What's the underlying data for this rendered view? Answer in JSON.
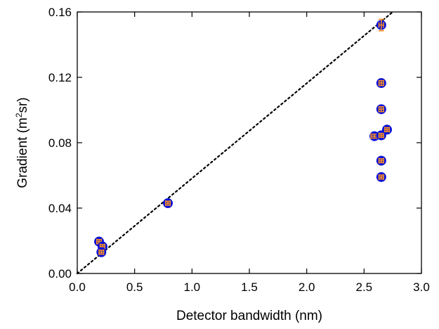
{
  "chart_data": {
    "type": "scatter",
    "xlabel": "Detector bandwidth (nm)",
    "ylabel_parts": {
      "pre": "Gradient (m",
      "sup": "2",
      "post": "sr)"
    },
    "xlim": [
      0.0,
      3.0
    ],
    "ylim": [
      0.0,
      0.16
    ],
    "x_ticks": [
      0.0,
      0.5,
      1.0,
      1.5,
      2.0,
      2.5,
      3.0
    ],
    "x_tick_labels": [
      "0.0",
      "0.5",
      "1.0",
      "1.5",
      "2.0",
      "2.5",
      "3.0"
    ],
    "y_ticks": [
      0.0,
      0.04,
      0.08,
      0.12,
      0.16
    ],
    "y_tick_labels": [
      "0.00",
      "0.04",
      "0.08",
      "0.12",
      "0.16"
    ],
    "grid": false,
    "marker_color": "#0a10d8",
    "errorbar_color": "#f08c28",
    "fit_line_color": "#000000",
    "points": [
      {
        "x": 0.19,
        "y": 0.0195,
        "xerr": 0.02,
        "yerr": 0.0012
      },
      {
        "x": 0.22,
        "y": 0.0165,
        "xerr": 0.02,
        "yerr": 0.0012
      },
      {
        "x": 0.21,
        "y": 0.013,
        "xerr": 0.02,
        "yerr": 0.0012
      },
      {
        "x": 0.79,
        "y": 0.043,
        "xerr": 0.02,
        "yerr": 0.0012
      },
      {
        "x": 2.65,
        "y": 0.152,
        "xerr": 0.02,
        "yerr": 0.0035
      },
      {
        "x": 2.65,
        "y": 0.1165,
        "xerr": 0.02,
        "yerr": 0.0015
      },
      {
        "x": 2.65,
        "y": 0.1005,
        "xerr": 0.02,
        "yerr": 0.0015
      },
      {
        "x": 2.59,
        "y": 0.084,
        "xerr": 0.03,
        "yerr": 0.0012
      },
      {
        "x": 2.65,
        "y": 0.0845,
        "xerr": 0.02,
        "yerr": 0.0012
      },
      {
        "x": 2.7,
        "y": 0.088,
        "xerr": 0.02,
        "yerr": 0.0012
      },
      {
        "x": 2.65,
        "y": 0.069,
        "xerr": 0.02,
        "yerr": 0.0012
      },
      {
        "x": 2.65,
        "y": 0.059,
        "xerr": 0.02,
        "yerr": 0.0012
      }
    ],
    "fit_line": {
      "style": "dotted",
      "from": {
        "x": 0.0,
        "y": 0.0
      },
      "to": {
        "x": 2.75,
        "y": 0.16
      }
    }
  }
}
